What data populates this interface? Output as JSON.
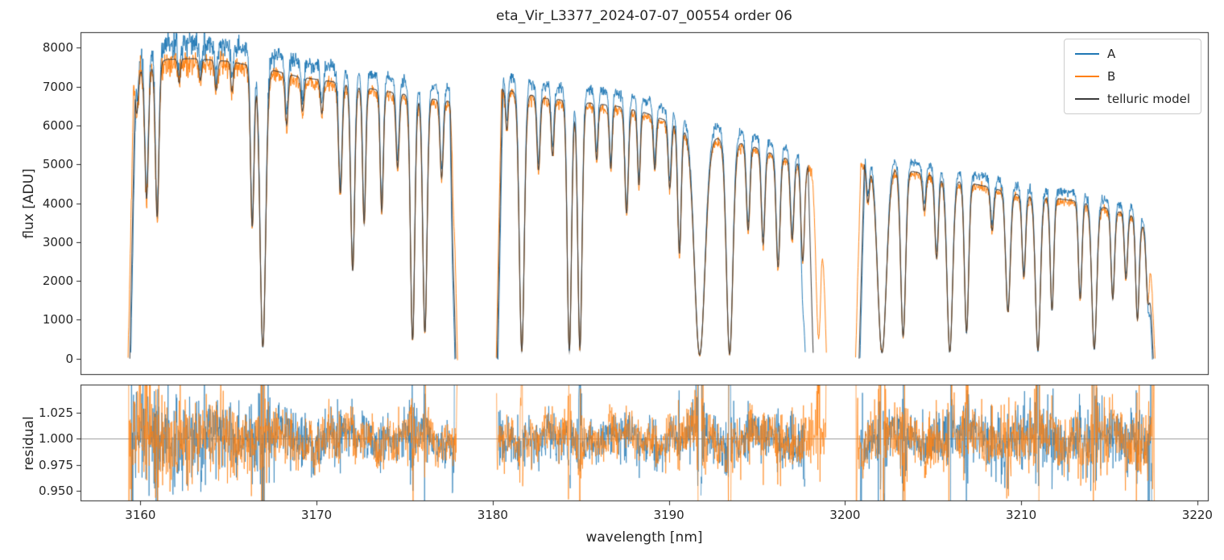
{
  "title": "eta_Vir_L3377_2024-07-07_00554  order 06",
  "chart_data": {
    "type": "line",
    "title": "eta_Vir_L3377_2024-07-07_00554  order 06",
    "xlabel": "wavelength [nm]",
    "xlim": [
      3156.6,
      3220.6
    ],
    "xticks": [
      3160,
      3170,
      3180,
      3190,
      3200,
      3210,
      3220
    ],
    "grid": false,
    "legend_position": "upper right",
    "panels": [
      {
        "name": "flux",
        "ylabel": "flux [ADU]",
        "ylim": [
          -400,
          8400
        ],
        "yticks": [
          0,
          1000,
          2000,
          3000,
          4000,
          5000,
          6000,
          7000,
          8000
        ]
      },
      {
        "name": "residual",
        "ylabel": "residual",
        "ylim": [
          0.941,
          1.052
        ],
        "yticks": [
          0.95,
          0.975,
          1.0,
          1.025
        ],
        "ytick_labels": [
          "0.950",
          "0.975",
          "1.000",
          "1.025"
        ],
        "hline": 1.0
      }
    ],
    "series": [
      {
        "name": "A",
        "color": "#1f77b4",
        "scale": 1.05,
        "is_model": false,
        "ranges_key": "ranges_A"
      },
      {
        "name": "B",
        "color": "#ff7f0e",
        "scale": 0.985,
        "is_model": false,
        "ranges_key": "ranges_B"
      },
      {
        "name": "telluric model",
        "color": "#3a3a3a",
        "scale": 1.0,
        "is_model": true,
        "ranges_key": "ranges_model"
      }
    ],
    "spectrum": {
      "step_nm": 0.02,
      "edge_ramp_nm": 0.3,
      "ranges_A": [
        [
          3159.45,
          3177.85
        ],
        [
          3180.3,
          3197.75
        ],
        [
          3200.85,
          3217.45
        ]
      ],
      "ranges_B": [
        [
          3159.3,
          3178.0
        ],
        [
          3180.2,
          3198.95
        ],
        [
          3200.6,
          3217.6
        ]
      ],
      "ranges_model": [
        [
          3159.4,
          3177.9
        ],
        [
          3180.25,
          3198.2
        ],
        [
          3200.8,
          3217.5
        ]
      ],
      "continuum": [
        [
          3159.3,
          6600
        ],
        [
          3160.0,
          7400
        ],
        [
          3161.5,
          7700
        ],
        [
          3163.0,
          7720
        ],
        [
          3165.0,
          7650
        ],
        [
          3167.0,
          7480
        ],
        [
          3169.0,
          7250
        ],
        [
          3171.0,
          7120
        ],
        [
          3173.0,
          6950
        ],
        [
          3175.0,
          6800
        ],
        [
          3177.0,
          6650
        ],
        [
          3178.0,
          6600
        ],
        [
          3180.3,
          6950
        ],
        [
          3181.0,
          6900
        ],
        [
          3183.0,
          6700
        ],
        [
          3185.0,
          6600
        ],
        [
          3187.0,
          6500
        ],
        [
          3188.5,
          6350
        ],
        [
          3190.0,
          6100
        ],
        [
          3191.5,
          5850
        ],
        [
          3193.0,
          5650
        ],
        [
          3194.5,
          5500
        ],
        [
          3196.0,
          5250
        ],
        [
          3197.7,
          5000
        ],
        [
          3199.0,
          4850
        ],
        [
          3200.8,
          5100
        ],
        [
          3202.0,
          5000
        ],
        [
          3204.0,
          4800
        ],
        [
          3206.0,
          4620
        ],
        [
          3208.0,
          4430
        ],
        [
          3210.0,
          4200
        ],
        [
          3212.0,
          4120
        ],
        [
          3213.5,
          4030
        ],
        [
          3215.0,
          3850
        ],
        [
          3216.5,
          3650
        ],
        [
          3217.6,
          3050
        ]
      ],
      "lines": [
        [
          3159.8,
          0.12,
          0.08
        ],
        [
          3160.35,
          0.45,
          0.1
        ],
        [
          3160.95,
          0.52,
          0.1
        ],
        [
          3162.2,
          0.08,
          0.07
        ],
        [
          3163.4,
          0.07,
          0.07
        ],
        [
          3164.3,
          0.1,
          0.08
        ],
        [
          3165.2,
          0.1,
          0.07
        ],
        [
          3166.35,
          0.55,
          0.1
        ],
        [
          3166.95,
          0.96,
          0.16
        ],
        [
          3168.3,
          0.18,
          0.08
        ],
        [
          3169.2,
          0.12,
          0.08
        ],
        [
          3170.3,
          0.12,
          0.08
        ],
        [
          3171.35,
          0.4,
          0.1
        ],
        [
          3172.05,
          0.68,
          0.11
        ],
        [
          3172.7,
          0.5,
          0.09
        ],
        [
          3173.7,
          0.45,
          0.09
        ],
        [
          3174.6,
          0.28,
          0.09
        ],
        [
          3175.45,
          0.93,
          0.12
        ],
        [
          3176.15,
          0.9,
          0.12
        ],
        [
          3177.1,
          0.3,
          0.09
        ],
        [
          3177.75,
          0.25,
          0.08
        ],
        [
          3180.8,
          0.15,
          0.07
        ],
        [
          3181.65,
          0.97,
          0.14
        ],
        [
          3182.6,
          0.28,
          0.09
        ],
        [
          3183.4,
          0.22,
          0.08
        ],
        [
          3184.35,
          0.97,
          0.12
        ],
        [
          3184.95,
          0.96,
          0.12
        ],
        [
          3185.9,
          0.22,
          0.08
        ],
        [
          3186.7,
          0.25,
          0.08
        ],
        [
          3187.6,
          0.42,
          0.1
        ],
        [
          3188.3,
          0.3,
          0.08
        ],
        [
          3189.2,
          0.22,
          0.08
        ],
        [
          3190.05,
          0.28,
          0.09
        ],
        [
          3190.6,
          0.55,
          0.1
        ],
        [
          3191.75,
          0.985,
          0.3
        ],
        [
          3193.45,
          0.98,
          0.18
        ],
        [
          3194.5,
          0.4,
          0.1
        ],
        [
          3195.35,
          0.45,
          0.1
        ],
        [
          3196.2,
          0.55,
          0.11
        ],
        [
          3197.0,
          0.4,
          0.1
        ],
        [
          3197.6,
          0.5,
          0.1
        ],
        [
          3198.5,
          0.9,
          0.15
        ],
        [
          3201.3,
          0.2,
          0.09
        ],
        [
          3202.1,
          0.97,
          0.25
        ],
        [
          3203.3,
          0.88,
          0.14
        ],
        [
          3204.5,
          0.2,
          0.09
        ],
        [
          3205.2,
          0.45,
          0.1
        ],
        [
          3205.95,
          0.96,
          0.16
        ],
        [
          3206.9,
          0.85,
          0.12
        ],
        [
          3208.35,
          0.25,
          0.09
        ],
        [
          3209.25,
          0.72,
          0.13
        ],
        [
          3210.15,
          0.5,
          0.1
        ],
        [
          3210.95,
          0.95,
          0.14
        ],
        [
          3211.75,
          0.7,
          0.1
        ],
        [
          3213.35,
          0.62,
          0.1
        ],
        [
          3214.15,
          0.94,
          0.14
        ],
        [
          3215.2,
          0.6,
          0.1
        ],
        [
          3215.95,
          0.45,
          0.09
        ],
        [
          3216.6,
          0.72,
          0.1
        ],
        [
          3217.2,
          0.55,
          0.1
        ]
      ],
      "noise": {
        "seed": 42,
        "sigma_base": 60,
        "sigma_left_extra": 95,
        "left_ref": 3172,
        "left_scale": 12
      },
      "residual_mask_min_flux": 250,
      "residual_systematics": {
        "amp1": 0.006,
        "period1": 3.9,
        "amp2": 0.0045,
        "period2": 1.15,
        "phase2": 1.3
      }
    }
  }
}
